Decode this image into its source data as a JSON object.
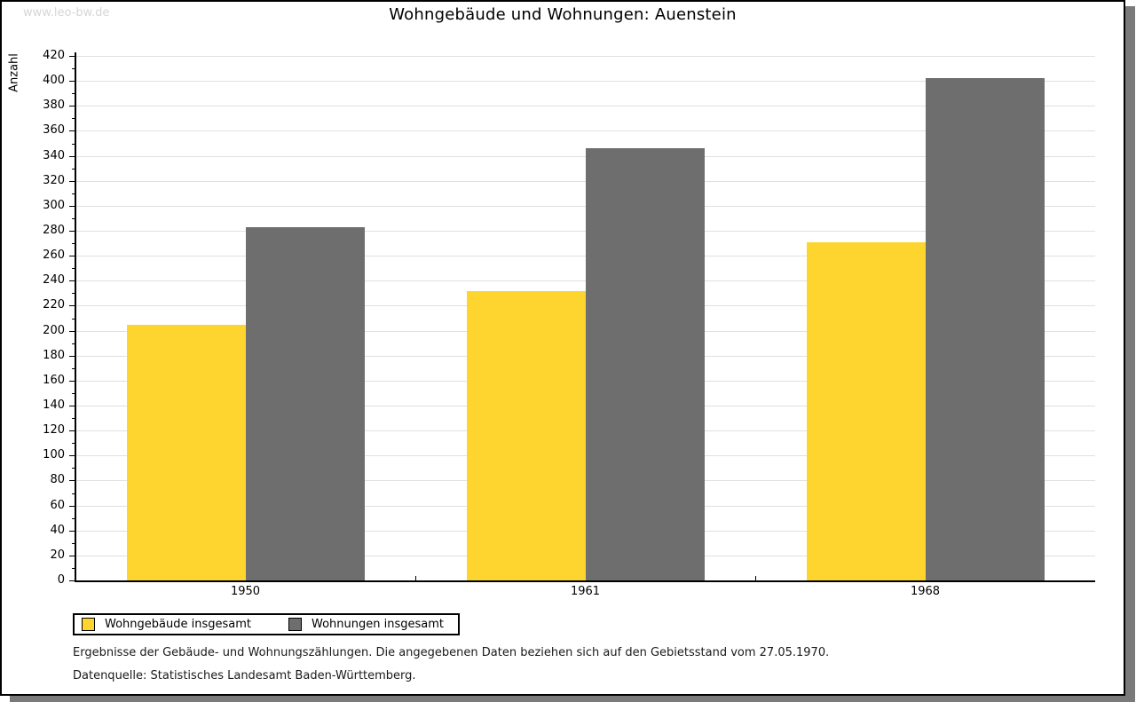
{
  "watermark": "www.leo-bw.de",
  "title": "Wohngebäude und Wohnungen: Auenstein",
  "chart_data": {
    "type": "bar",
    "title": "Wohngebäude und Wohnungen: Auenstein",
    "categories": [
      "1950",
      "1961",
      "1968"
    ],
    "series": [
      {
        "name": "Wohngebäude insgesamt",
        "color": "#fdd52e",
        "values": [
          205,
          232,
          271
        ]
      },
      {
        "name": "Wohnungen insgesamt",
        "color": "#6e6e6e",
        "values": [
          283,
          346,
          402
        ]
      }
    ],
    "xlabel": "",
    "ylabel": "Anzahl",
    "ylim": [
      0,
      420
    ],
    "ytick_step": 20,
    "ytick_minor_step": 10,
    "grid": true,
    "gridline_color": "#e0e0e0",
    "legend_position": "bottom-left"
  },
  "footnotes": [
    "Ergebnisse der Gebäude- und Wohnungszählungen. Die angegebenen Daten beziehen sich auf den Gebietsstand vom 27.05.1970.",
    "Datenquelle: Statistisches Landesamt Baden-Württemberg."
  ]
}
